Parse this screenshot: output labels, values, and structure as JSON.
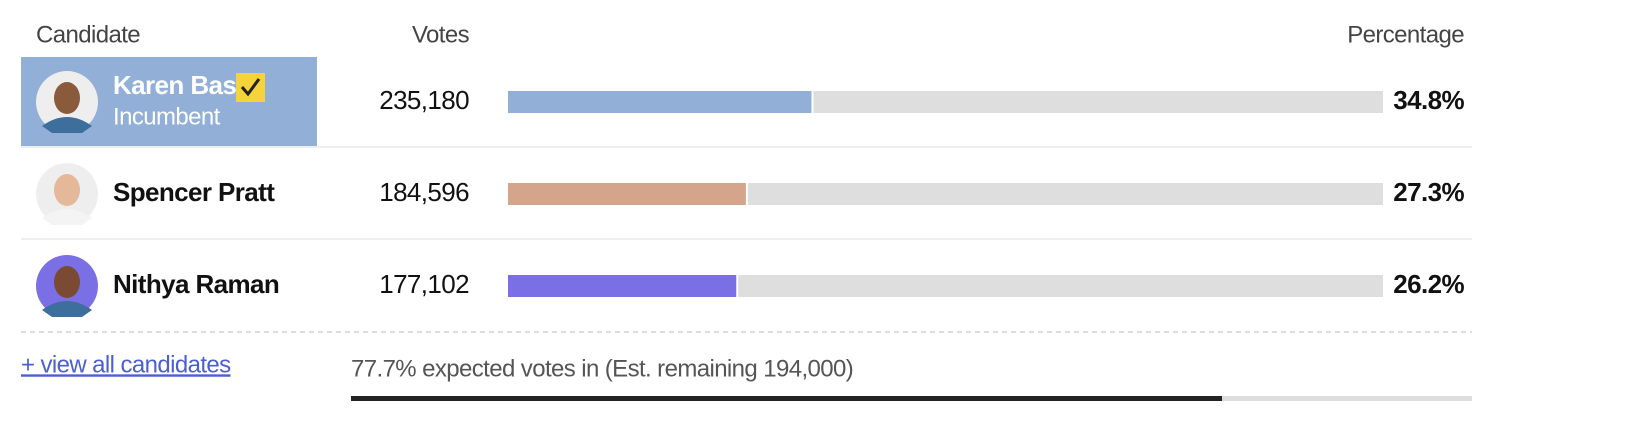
{
  "header": {
    "candidate": "Candidate",
    "votes": "Votes",
    "percentage": "Percentage"
  },
  "rows": [
    {
      "name": "Karen Bass",
      "note": "Incumbent",
      "votes": "235,180",
      "percent": 34.8,
      "percent_label": "34.8%",
      "color": "#92afd7",
      "winner": true
    },
    {
      "name": "Spencer Pratt",
      "votes": "184,596",
      "percent": 27.3,
      "percent_label": "27.3%",
      "color": "#d4a58a",
      "winner": false
    },
    {
      "name": "Nithya Raman",
      "votes": "177,102",
      "percent": 26.2,
      "percent_label": "26.2%",
      "color": "#7b6fe6",
      "winner": false
    }
  ],
  "footer": {
    "link": "+ view all candidates",
    "expected_text": "77.7% expected votes in (Est. remaining 194,000)",
    "expected_percent": 77.7
  }
}
